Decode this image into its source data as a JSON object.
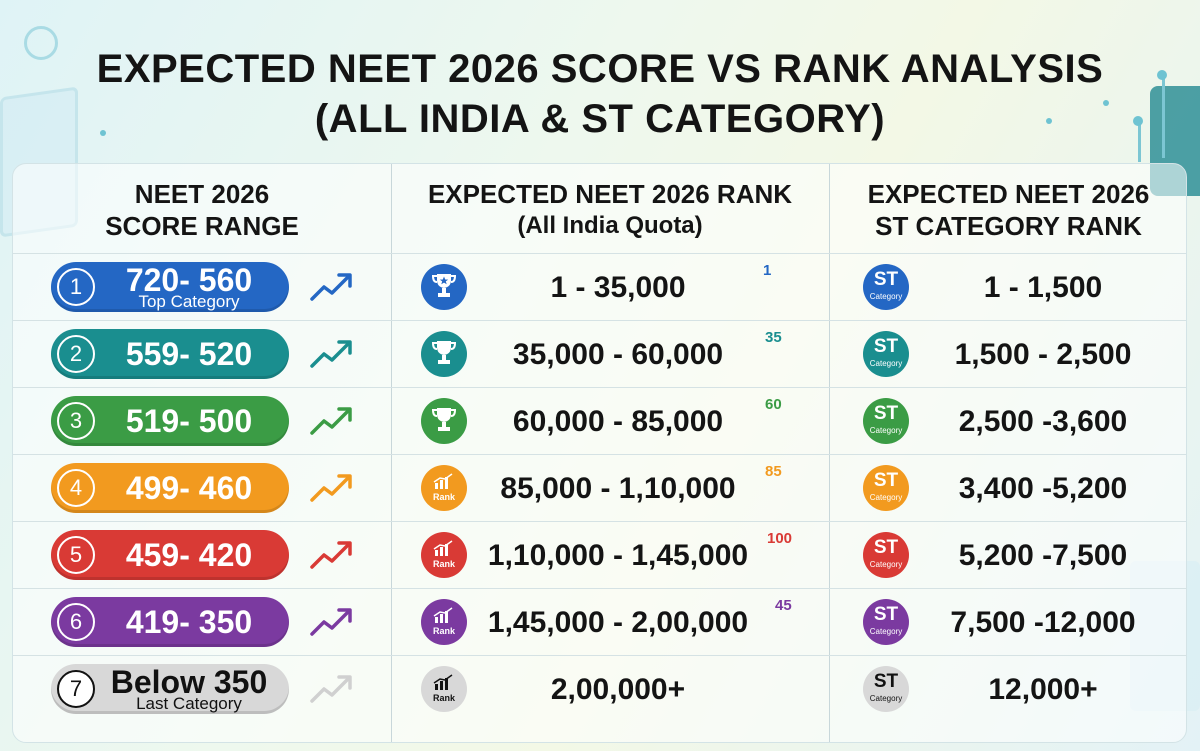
{
  "title": {
    "line1": "EXPECTED NEET 2026 SCORE VS RANK ANALYSIS",
    "line2": "(ALL INDIA & ST CATEGORY)"
  },
  "headers": {
    "col1_line1": "NEET 2026",
    "col1_line2": "SCORE RANGE",
    "col2_line1": "EXPECTED NEET 2026 RANK",
    "col2_line2": "(All India Quota)",
    "col3_line1": "EXPECTED NEET 2026",
    "col3_line2": "ST CATEGORY RANK"
  },
  "rows": [
    {
      "num": "1",
      "score": "720- 560",
      "caption": "Top Category",
      "rank": "1 - 35,000",
      "sup": "1",
      "rank_icon": "trophy-star-icon",
      "st_label": "ST",
      "st_caption": "Category",
      "st_rank": "1 - 1,500",
      "color": "#2467c4"
    },
    {
      "num": "2",
      "score": "559- 520",
      "caption": "",
      "rank": "35,000 - 60,000",
      "sup": "35",
      "rank_icon": "trophy-icon",
      "st_label": "ST",
      "st_caption": "Category",
      "st_rank": "1,500 - 2,500",
      "color": "#1a8e8f"
    },
    {
      "num": "3",
      "score": "519- 500",
      "caption": "",
      "rank": "60,000 - 85,000",
      "sup": "60",
      "rank_icon": "trophy-icon",
      "st_label": "ST",
      "st_caption": "Category",
      "st_rank": "2,500 -3,600",
      "color": "#3b9c45"
    },
    {
      "num": "4",
      "score": "499- 460",
      "caption": "",
      "rank": "85,000 - 1,10,000",
      "sup": "85",
      "rank_icon": "rank-chart-icon",
      "rank_word": "Rank",
      "st_label": "ST",
      "st_caption": "Category",
      "st_rank": "3,400 -5,200",
      "color": "#f29a1f"
    },
    {
      "num": "5",
      "score": "459- 420",
      "caption": "",
      "rank": "1,10,000 - 1,45,000",
      "sup": "100",
      "rank_icon": "rank-chart-icon",
      "rank_word": "Rank",
      "st_label": "ST",
      "st_caption": "Category",
      "st_rank": "5,200 -7,500",
      "color": "#d93a35"
    },
    {
      "num": "6",
      "score": "419- 350",
      "caption": "",
      "rank": "1,45,000 - 2,00,000",
      "sup": "45",
      "rank_icon": "rank-chart-icon",
      "rank_word": "Rank",
      "st_label": "ST",
      "st_caption": "Category",
      "st_rank": "7,500 -12,000",
      "color": "#7b3aa0"
    },
    {
      "num": "7",
      "score": "Below 350",
      "caption": "Last Category",
      "rank": "2,00,000+",
      "sup": "",
      "rank_icon": "rank-chart-icon",
      "rank_word": "Rank",
      "st_label": "ST",
      "st_caption": "Category",
      "st_rank": "12,000+",
      "color": "#d8d8d8"
    }
  ]
}
